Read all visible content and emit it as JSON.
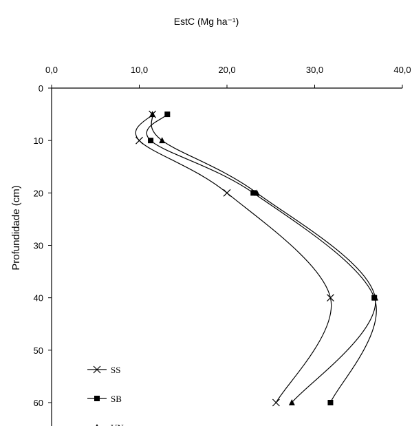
{
  "chart_data": {
    "type": "line",
    "title": "",
    "xlabel": "EstC (Mg ha⁻¹)",
    "ylabel": "Profundidade (cm)",
    "x_axis_position": "top",
    "y_axis_inverted": true,
    "xlim": [
      0,
      40
    ],
    "ylim": [
      0,
      65
    ],
    "x_ticks": [
      "0,0",
      "10,0",
      "20,0",
      "30,0",
      "40,0"
    ],
    "x_tick_values": [
      0,
      10,
      20,
      30,
      40
    ],
    "y_ticks": [
      "0",
      "10",
      "20",
      "30",
      "40",
      "50",
      "60"
    ],
    "y_tick_values": [
      0,
      10,
      20,
      30,
      40,
      50,
      60
    ],
    "grid": false,
    "legend_position": "bottom-left",
    "series": [
      {
        "name": "SS",
        "marker": "x",
        "color": "#000000",
        "points": [
          {
            "x": 11.5,
            "y": 5
          },
          {
            "x": 10.0,
            "y": 10
          },
          {
            "x": 20.0,
            "y": 20
          },
          {
            "x": 31.8,
            "y": 40
          },
          {
            "x": 25.6,
            "y": 60
          }
        ]
      },
      {
        "name": "SB",
        "marker": "square",
        "color": "#000000",
        "points": [
          {
            "x": 13.2,
            "y": 5
          },
          {
            "x": 11.3,
            "y": 10
          },
          {
            "x": 23.0,
            "y": 20
          },
          {
            "x": 36.8,
            "y": 40
          },
          {
            "x": 31.8,
            "y": 60
          }
        ]
      },
      {
        "name": "VN",
        "marker": "triangle",
        "color": "#000000",
        "points": [
          {
            "x": 11.5,
            "y": 5
          },
          {
            "x": 12.6,
            "y": 10
          },
          {
            "x": 23.4,
            "y": 20
          },
          {
            "x": 36.9,
            "y": 40
          },
          {
            "x": 27.4,
            "y": 60
          }
        ]
      }
    ]
  }
}
